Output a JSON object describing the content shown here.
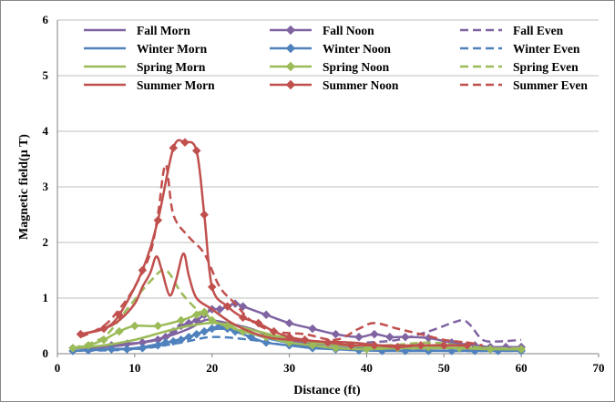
{
  "chart_data": {
    "type": "line",
    "title": "",
    "xlabel": "Distance (ft)",
    "ylabel": "Magnetic field(µ T)",
    "xlim": [
      0,
      70
    ],
    "ylim": [
      0,
      6
    ],
    "xticks": [
      0,
      10,
      20,
      30,
      40,
      50,
      60,
      70
    ],
    "yticks": [
      0,
      1,
      2,
      3,
      4,
      5,
      6
    ],
    "grid": "horizontal",
    "legend_position": "top",
    "series": [
      {
        "name": "Fall Morn",
        "color": "#8064a2",
        "style": "solid",
        "marker": "none",
        "points": [
          [
            2,
            0.1
          ],
          [
            6,
            0.12
          ],
          [
            10,
            0.18
          ],
          [
            14,
            0.3
          ],
          [
            17,
            0.45
          ],
          [
            19,
            0.6
          ],
          [
            20,
            0.6
          ],
          [
            22,
            0.55
          ],
          [
            25,
            0.45
          ],
          [
            28,
            0.3
          ],
          [
            32,
            0.2
          ],
          [
            36,
            0.15
          ],
          [
            40,
            0.12
          ],
          [
            44,
            0.1
          ],
          [
            48,
            0.1
          ],
          [
            52,
            0.1
          ],
          [
            56,
            0.1
          ],
          [
            60,
            0.1
          ]
        ]
      },
      {
        "name": "Fall Noon",
        "color": "#8064a2",
        "style": "solid",
        "marker": "diamond",
        "points": [
          [
            2,
            0.1
          ],
          [
            4,
            0.12
          ],
          [
            7,
            0.15
          ],
          [
            9,
            0.18
          ],
          [
            11,
            0.2
          ],
          [
            13,
            0.25
          ],
          [
            14,
            0.3
          ],
          [
            15,
            0.4
          ],
          [
            16,
            0.5
          ],
          [
            17,
            0.55
          ],
          [
            18,
            0.6
          ],
          [
            19,
            0.7
          ],
          [
            20,
            0.8
          ],
          [
            21,
            0.8
          ],
          [
            22,
            0.85
          ],
          [
            23,
            0.9
          ],
          [
            24,
            0.85
          ],
          [
            27,
            0.7
          ],
          [
            30,
            0.55
          ],
          [
            33,
            0.45
          ],
          [
            36,
            0.35
          ],
          [
            39,
            0.3
          ],
          [
            41,
            0.35
          ],
          [
            43,
            0.3
          ],
          [
            45,
            0.3
          ],
          [
            48,
            0.28
          ],
          [
            51,
            0.2
          ],
          [
            54,
            0.15
          ],
          [
            56,
            0.12
          ],
          [
            58,
            0.12
          ],
          [
            60,
            0.12
          ]
        ]
      },
      {
        "name": "Fall Even",
        "color": "#8064a2",
        "style": "dashed",
        "marker": "none",
        "points": [
          [
            40,
            0.2
          ],
          [
            44,
            0.25
          ],
          [
            48,
            0.4
          ],
          [
            51,
            0.55
          ],
          [
            52.5,
            0.6
          ],
          [
            53.5,
            0.5
          ],
          [
            55,
            0.25
          ],
          [
            57,
            0.22
          ],
          [
            60,
            0.25
          ]
        ]
      },
      {
        "name": "Winter Morn",
        "color": "#4f81bd",
        "style": "solid",
        "marker": "none",
        "points": [
          [
            2,
            0.05
          ],
          [
            6,
            0.08
          ],
          [
            10,
            0.1
          ],
          [
            14,
            0.2
          ],
          [
            17,
            0.3
          ],
          [
            19,
            0.4
          ],
          [
            21,
            0.45
          ],
          [
            24,
            0.4
          ],
          [
            28,
            0.25
          ],
          [
            32,
            0.15
          ],
          [
            36,
            0.1
          ],
          [
            40,
            0.08
          ],
          [
            44,
            0.05
          ],
          [
            48,
            0.05
          ],
          [
            52,
            0.05
          ],
          [
            56,
            0.05
          ],
          [
            60,
            0.05
          ]
        ]
      },
      {
        "name": "Winter Noon",
        "color": "#4f81bd",
        "style": "solid",
        "marker": "diamond",
        "points": [
          [
            2,
            0.05
          ],
          [
            4,
            0.06
          ],
          [
            7,
            0.08
          ],
          [
            9,
            0.08
          ],
          [
            11,
            0.1
          ],
          [
            13,
            0.15
          ],
          [
            14,
            0.2
          ],
          [
            15,
            0.22
          ],
          [
            16,
            0.25
          ],
          [
            17,
            0.3
          ],
          [
            18,
            0.35
          ],
          [
            19,
            0.4
          ],
          [
            20,
            0.45
          ],
          [
            21,
            0.5
          ],
          [
            22,
            0.45
          ],
          [
            23,
            0.4
          ],
          [
            25,
            0.3
          ],
          [
            27,
            0.2
          ],
          [
            30,
            0.15
          ],
          [
            33,
            0.1
          ],
          [
            36,
            0.08
          ],
          [
            39,
            0.06
          ],
          [
            42,
            0.05
          ],
          [
            45,
            0.05
          ],
          [
            48,
            0.05
          ],
          [
            51,
            0.05
          ],
          [
            54,
            0.05
          ],
          [
            57,
            0.05
          ],
          [
            60,
            0.05
          ]
        ]
      },
      {
        "name": "Winter Even",
        "color": "#4f81bd",
        "style": "dashed",
        "marker": "none",
        "points": [
          [
            2,
            0.05
          ],
          [
            10,
            0.08
          ],
          [
            16,
            0.2
          ],
          [
            20,
            0.3
          ],
          [
            25,
            0.25
          ],
          [
            30,
            0.15
          ],
          [
            40,
            0.08
          ],
          [
            50,
            0.05
          ],
          [
            60,
            0.05
          ]
        ]
      },
      {
        "name": "Spring Morn",
        "color": "#9bbb59",
        "style": "solid",
        "marker": "none",
        "points": [
          [
            2,
            0.1
          ],
          [
            6,
            0.15
          ],
          [
            10,
            0.25
          ],
          [
            14,
            0.4
          ],
          [
            17,
            0.5
          ],
          [
            20,
            0.55
          ],
          [
            23,
            0.5
          ],
          [
            26,
            0.4
          ],
          [
            29,
            0.3
          ],
          [
            33,
            0.2
          ],
          [
            37,
            0.15
          ],
          [
            41,
            0.12
          ],
          [
            45,
            0.1
          ],
          [
            50,
            0.1
          ],
          [
            55,
            0.1
          ],
          [
            60,
            0.08
          ]
        ]
      },
      {
        "name": "Spring Noon",
        "color": "#9bbb59",
        "style": "solid",
        "marker": "diamond",
        "points": [
          [
            2,
            0.1
          ],
          [
            4,
            0.15
          ],
          [
            6,
            0.25
          ],
          [
            8,
            0.4
          ],
          [
            10,
            0.5
          ],
          [
            13,
            0.5
          ],
          [
            16,
            0.6
          ],
          [
            18,
            0.7
          ],
          [
            19,
            0.75
          ],
          [
            20,
            0.6
          ],
          [
            22,
            0.5
          ],
          [
            24,
            0.4
          ],
          [
            27,
            0.3
          ],
          [
            30,
            0.2
          ],
          [
            33,
            0.15
          ],
          [
            36,
            0.1
          ],
          [
            40,
            0.08
          ],
          [
            44,
            0.1
          ],
          [
            48,
            0.12
          ],
          [
            52,
            0.1
          ],
          [
            56,
            0.08
          ],
          [
            60,
            0.08
          ]
        ]
      },
      {
        "name": "Spring Even",
        "color": "#9bbb59",
        "style": "dashed",
        "marker": "none",
        "points": [
          [
            2,
            0.1
          ],
          [
            6,
            0.3
          ],
          [
            9,
            0.8
          ],
          [
            12,
            1.3
          ],
          [
            14,
            1.5
          ],
          [
            16,
            1.1
          ],
          [
            18,
            0.8
          ],
          [
            20,
            0.6
          ],
          [
            24,
            0.4
          ],
          [
            28,
            0.3
          ],
          [
            35,
            0.2
          ],
          [
            42,
            0.15
          ],
          [
            48,
            0.2
          ],
          [
            52,
            0.15
          ],
          [
            56,
            0.1
          ],
          [
            60,
            0.1
          ]
        ]
      },
      {
        "name": "Summer Morn",
        "color": "#c0504d",
        "style": "solid",
        "marker": "none",
        "points": [
          [
            3,
            0.35
          ],
          [
            6,
            0.45
          ],
          [
            8,
            0.6
          ],
          [
            10,
            0.9
          ],
          [
            11,
            1.2
          ],
          [
            12,
            1.45
          ],
          [
            12.8,
            1.75
          ],
          [
            13.5,
            1.5
          ],
          [
            14.5,
            1.05
          ],
          [
            15.3,
            1.3
          ],
          [
            16.3,
            1.8
          ],
          [
            17,
            1.4
          ],
          [
            18,
            1.0
          ],
          [
            20,
            0.8
          ],
          [
            22,
            0.6
          ],
          [
            24,
            0.45
          ],
          [
            27,
            0.3
          ],
          [
            30,
            0.25
          ],
          [
            34,
            0.22
          ],
          [
            38,
            0.2
          ],
          [
            42,
            0.15
          ],
          [
            46,
            0.15
          ],
          [
            50,
            0.15
          ],
          [
            53,
            0.15
          ]
        ]
      },
      {
        "name": "Summer Noon",
        "color": "#c0504d",
        "style": "solid",
        "marker": "diamond",
        "points": [
          [
            3,
            0.35
          ],
          [
            6,
            0.45
          ],
          [
            8,
            0.7
          ],
          [
            11,
            1.5
          ],
          [
            13,
            2.4
          ],
          [
            15,
            3.7
          ],
          [
            16.5,
            3.8
          ],
          [
            18,
            3.65
          ],
          [
            19,
            2.5
          ],
          [
            20,
            1.2
          ],
          [
            22,
            0.85
          ],
          [
            24,
            0.65
          ],
          [
            26,
            0.55
          ],
          [
            28,
            0.4
          ],
          [
            30,
            0.3
          ],
          [
            32,
            0.25
          ],
          [
            35,
            0.2
          ],
          [
            38,
            0.15
          ],
          [
            41,
            0.15
          ],
          [
            44,
            0.12
          ],
          [
            47,
            0.15
          ],
          [
            50,
            0.15
          ],
          [
            53,
            0.15
          ]
        ]
      },
      {
        "name": "Summer Even",
        "color": "#c0504d",
        "style": "dashed",
        "marker": "none",
        "points": [
          [
            3,
            0.3
          ],
          [
            6,
            0.5
          ],
          [
            8,
            0.8
          ],
          [
            10,
            1.2
          ],
          [
            12,
            1.8
          ],
          [
            13,
            2.5
          ],
          [
            14,
            3.4
          ],
          [
            15,
            2.5
          ],
          [
            17,
            2.1
          ],
          [
            19,
            1.8
          ],
          [
            21,
            1.2
          ],
          [
            23,
            0.9
          ],
          [
            25,
            0.6
          ],
          [
            28,
            0.4
          ],
          [
            32,
            0.35
          ],
          [
            36,
            0.25
          ],
          [
            39,
            0.45
          ],
          [
            41,
            0.55
          ],
          [
            44,
            0.45
          ],
          [
            47,
            0.35
          ],
          [
            50,
            0.25
          ],
          [
            53,
            0.2
          ],
          [
            55,
            0.15
          ]
        ]
      }
    ]
  }
}
